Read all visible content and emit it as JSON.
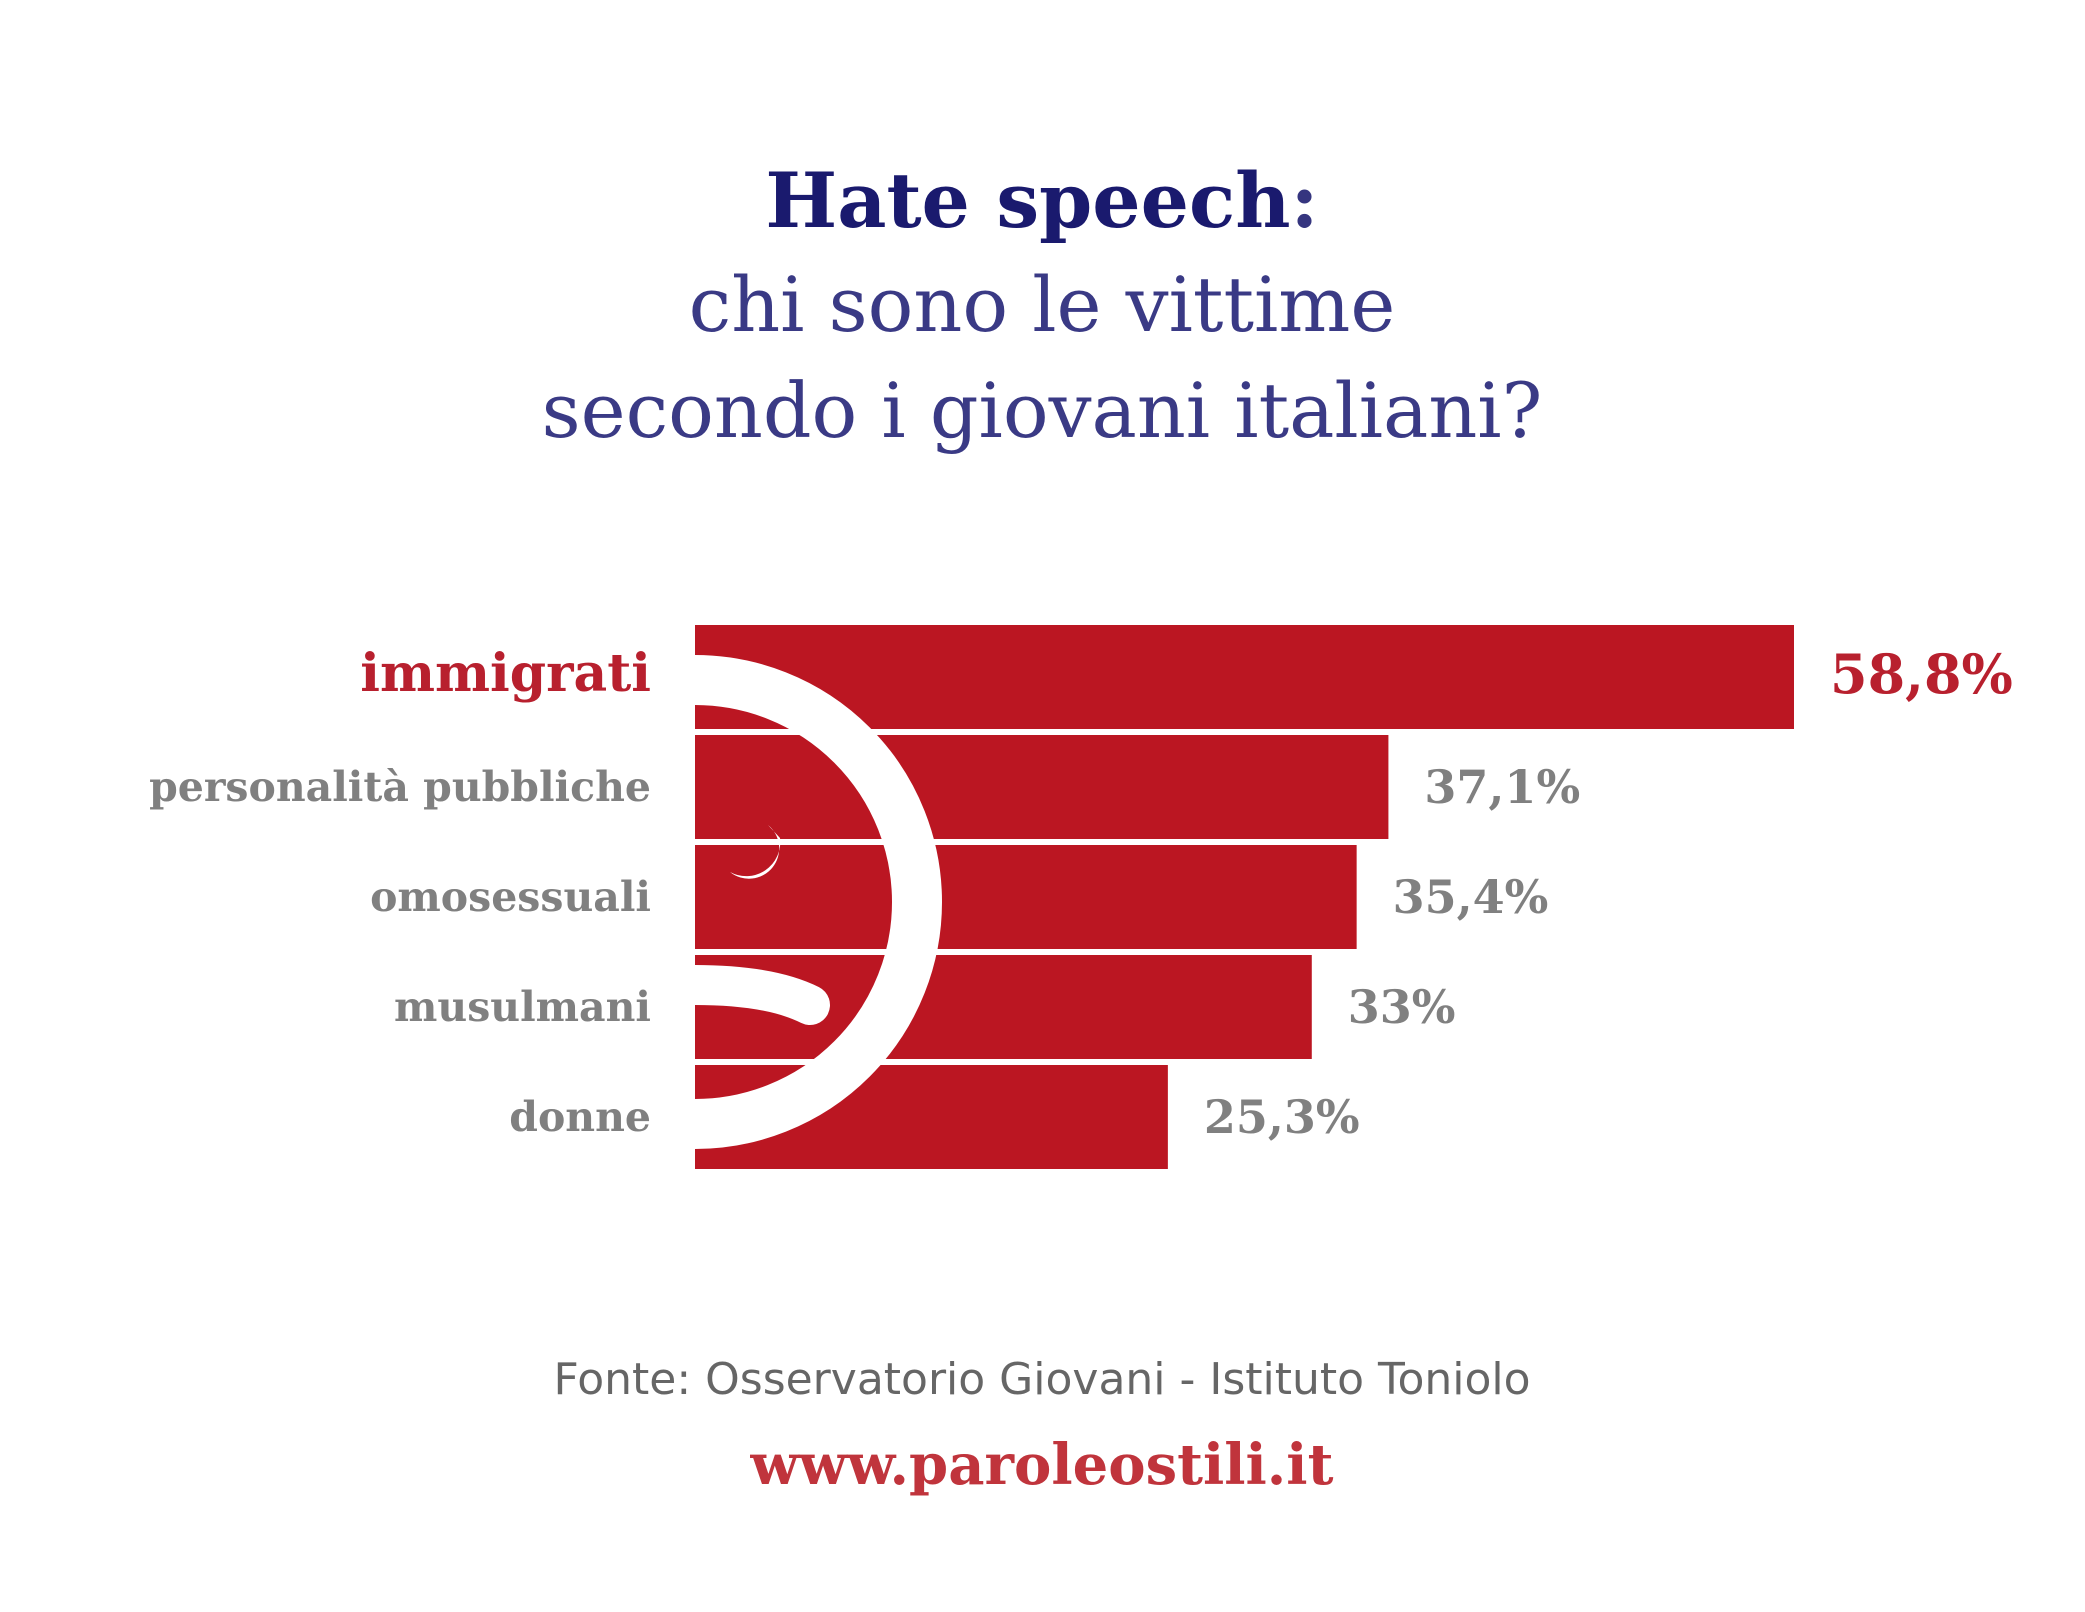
{
  "chart_data": {
    "type": "bar",
    "orientation": "horizontal",
    "title": "Hate speech",
    "title_punctuation": ":",
    "subtitle": [
      "chi sono le vittime",
      "secondo i giovani italiani?"
    ],
    "categories": [
      "immigrati",
      "personalità pubbliche",
      "omosessuali",
      "musulmani",
      "donne"
    ],
    "values": [
      58.8,
      37.1,
      35.4,
      33,
      25.3
    ],
    "value_labels": [
      "58,8%",
      "37,1%",
      "35,4%",
      "33%",
      "25,3%"
    ],
    "color": "#bb1622",
    "label_colors": [
      "#b8202e",
      "#808080",
      "#808080",
      "#808080",
      "#808080"
    ],
    "source": "Fonte: Osservatorio Giovani - Istituto Toniolo",
    "website": "www.paroleostili.it"
  }
}
